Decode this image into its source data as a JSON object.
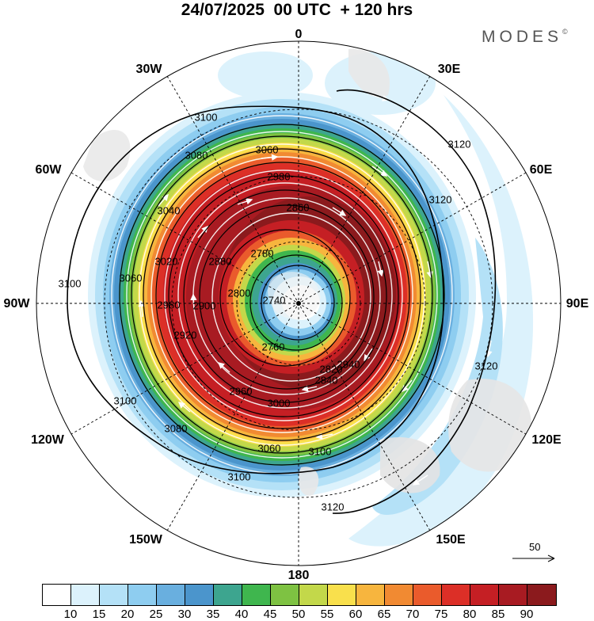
{
  "title": "24/07/2025  00 UTC  + 120 hrs",
  "brand": "MODES",
  "brand_mark": "©",
  "longitude_labels": {
    "lon_0": "0",
    "lon_30e": "30E",
    "lon_60e": "60E",
    "lon_90e": "90E",
    "lon_120e": "120E",
    "lon_150e": "150E",
    "lon_180": "180",
    "lon_150w": "150W",
    "lon_120w": "120W",
    "lon_90w": "90W",
    "lon_60w": "60W",
    "lon_30w": "30W"
  },
  "contour_labels": [
    "3100",
    "3120",
    "3080",
    "3060",
    "3040",
    "3020",
    "3000",
    "2980",
    "2960",
    "2940",
    "2920",
    "2900",
    "2880",
    "2860",
    "2840",
    "2820",
    "2800",
    "2780",
    "2760",
    "2740"
  ],
  "reference_vector": {
    "value": "50",
    "icon": "arrow-right-icon"
  },
  "colorbar": {
    "colors": [
      "#ffffff",
      "#dcf2fc",
      "#b4e1f7",
      "#8ecdf0",
      "#69afdf",
      "#4b95cc",
      "#3da58f",
      "#3fb64e",
      "#7ec242",
      "#c3d84a",
      "#f9e04c",
      "#f7b53e",
      "#f18a32",
      "#ea5b2c",
      "#dc2f27",
      "#c51f24",
      "#a81b22",
      "#8b1a1d"
    ],
    "labels": [
      "10",
      "15",
      "20",
      "25",
      "30",
      "35",
      "40",
      "45",
      "50",
      "55",
      "60",
      "65",
      "70",
      "75",
      "80",
      "85",
      "90"
    ]
  },
  "map_colors": {
    "jet_core": "#a81b22",
    "ocean_background": "#ffffff",
    "contour": "#000000",
    "vector": "#ffffff"
  }
}
